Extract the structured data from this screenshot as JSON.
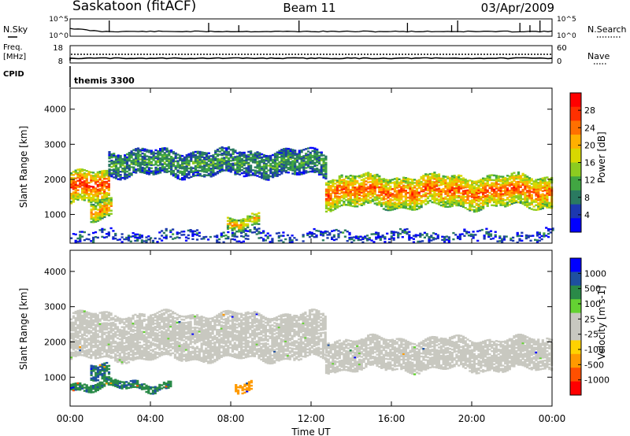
{
  "header": {
    "station": "Saskatoon (fitACF)",
    "beam": "Beam 11",
    "date": "03/Apr/2009"
  },
  "noise_panel": {
    "left_label": "N.Sky",
    "right_label": "N.Search",
    "left_ticks": [
      "10^5",
      "10^0"
    ],
    "right_ticks": [
      "10^5",
      "10^0"
    ]
  },
  "freq_panel": {
    "left_label_1": "Freq.",
    "left_label_2": "[MHz]",
    "cpid_label": "CPID",
    "right_label": "Nave",
    "left_ticks": [
      "18",
      "8"
    ],
    "right_ticks": [
      "60",
      "0"
    ]
  },
  "cpid_panel": {
    "program": "themis 3300"
  },
  "colors": {
    "power_scale": [
      "#0000ff",
      "#1c38b0",
      "#2a7a60",
      "#41a642",
      "#8ccc20",
      "#d8d800",
      "#ffb000",
      "#ff7000",
      "#ff3000",
      "#ff0000"
    ],
    "velocity_scale": [
      "#ff0000",
      "#ff5000",
      "#ff9a00",
      "#ffd200",
      "#c8c8c0",
      "#c8c8c0",
      "#64d232",
      "#2a8a48",
      "#1e50a0",
      "#0000ff"
    ],
    "ground_scatter": "#c8c8c0"
  },
  "chart_data": [
    {
      "type": "heatmap",
      "title": "Power",
      "xlabel": "Time UT",
      "ylabel": "Slant Range [km]",
      "x_ticks": [
        "00:00",
        "04:00",
        "08:00",
        "12:00",
        "16:00",
        "20:00",
        "00:00"
      ],
      "y_ticks": [
        "1000",
        "2000",
        "3000",
        "4000"
      ],
      "ylim": [
        180,
        4600
      ],
      "colorbar_label": "Power [dB]",
      "colorbar_ticks": [
        "28",
        "24",
        "20",
        "16",
        "12",
        "8",
        "4"
      ],
      "colorbar_range": [
        0,
        30
      ],
      "bands": [
        {
          "t_start": 0.0,
          "t_end": 1.9,
          "range_low": 1300,
          "range_high": 2200,
          "power": 26
        },
        {
          "t_start": 1.9,
          "t_end": 12.7,
          "range_low": 2100,
          "range_high": 2800,
          "power": 10
        },
        {
          "t_start": 12.7,
          "t_end": 24.0,
          "range_low": 1200,
          "range_high": 2100,
          "power": 24
        },
        {
          "t_start": 1.0,
          "t_end": 2.0,
          "range_low": 900,
          "range_high": 1400,
          "power": 22
        },
        {
          "t_start": 7.8,
          "t_end": 9.4,
          "range_low": 600,
          "range_high": 950,
          "power": 20
        },
        {
          "t_start": 0.0,
          "t_end": 24.0,
          "range_low": 200,
          "range_high": 500,
          "power": 6
        }
      ]
    },
    {
      "type": "heatmap",
      "title": "Velocity",
      "xlabel": "Time UT",
      "ylabel": "Slant Range [km]",
      "x_ticks": [
        "00:00",
        "04:00",
        "08:00",
        "12:00",
        "16:00",
        "20:00",
        "00:00"
      ],
      "y_ticks": [
        "1000",
        "2000",
        "3000",
        "4000"
      ],
      "ylim": [
        180,
        4600
      ],
      "colorbar_label": "Velocity [m s-1]",
      "colorbar_ticks": [
        "1000",
        "500",
        "100",
        "25",
        "-25",
        "-100",
        "-500",
        "-1000"
      ],
      "bands": [
        {
          "t_start": 0.0,
          "t_end": 12.7,
          "range_low": 1500,
          "range_high": 2800,
          "velocity": 0
        },
        {
          "t_start": 12.7,
          "t_end": 24.0,
          "range_low": 1200,
          "range_high": 2100,
          "velocity": 0
        },
        {
          "t_start": 1.0,
          "t_end": 1.9,
          "range_low": 1000,
          "range_high": 1450,
          "velocity": 100
        },
        {
          "t_start": 8.2,
          "t_end": 9.0,
          "range_low": 650,
          "range_high": 880,
          "velocity": -300
        },
        {
          "t_start": 0.0,
          "t_end": 5.0,
          "range_low": 650,
          "range_high": 850,
          "velocity": 80
        }
      ]
    }
  ]
}
